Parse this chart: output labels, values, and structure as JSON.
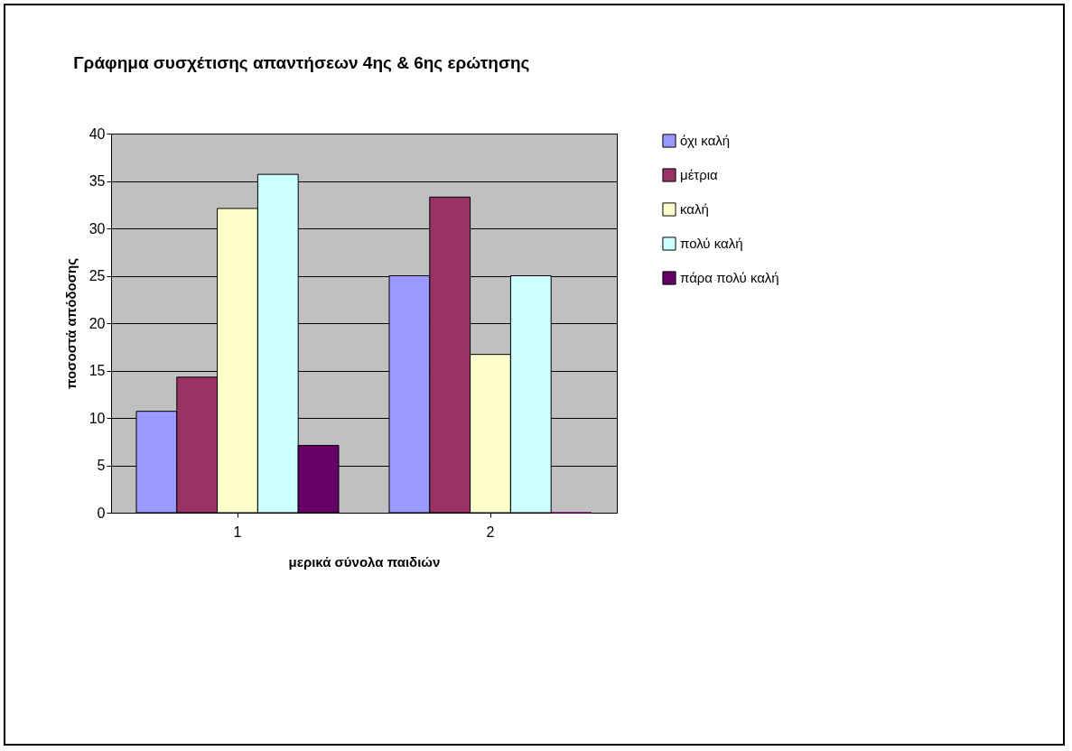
{
  "chart_data": {
    "type": "bar",
    "title": "Γράφημα συσχέτισης απαντήσεων 4ης & 6ης ερώτησης",
    "xlabel": "μερικά σύνολα παιδιών",
    "ylabel": "ποσοστά απόδοσης",
    "categories": [
      "1",
      "2"
    ],
    "series": [
      {
        "name": "όχι καλή",
        "color": "#9999ff",
        "values": [
          10.7,
          25
        ]
      },
      {
        "name": "μέτρια",
        "color": "#993366",
        "values": [
          14.3,
          33.3
        ]
      },
      {
        "name": "καλή",
        "color": "#ffffcc",
        "values": [
          32.1,
          16.7
        ]
      },
      {
        "name": "πολύ καλή",
        "color": "#ccffff",
        "values": [
          35.7,
          25
        ]
      },
      {
        "name": "πάρα πολύ καλή",
        "color": "#660066",
        "values": [
          7.1,
          0
        ]
      }
    ],
    "ylim": [
      0,
      40
    ],
    "yticks": [
      0,
      5,
      10,
      15,
      20,
      25,
      30,
      35,
      40
    ],
    "grid": "y",
    "legend": "right"
  }
}
